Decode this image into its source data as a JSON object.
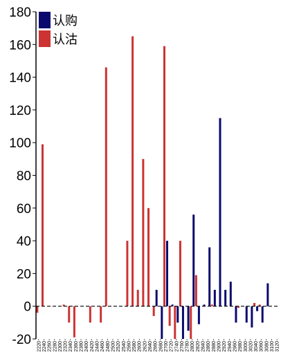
{
  "chart_data": {
    "type": "bar",
    "title": "",
    "xlabel": "",
    "ylabel": "",
    "ylim": [
      -20,
      180
    ],
    "y_ticks": [
      -20,
      0,
      20,
      40,
      60,
      80,
      100,
      120,
      140,
      160,
      180
    ],
    "grid": false,
    "legend_position": "top-left",
    "categories": [
      "2220",
      "2240",
      "2260",
      "2280",
      "2300",
      "2320",
      "2340",
      "2360",
      "2380",
      "2400",
      "2420",
      "2440",
      "2460",
      "2480",
      "2500",
      "2520",
      "2540",
      "2560",
      "2580",
      "2600",
      "2620",
      "2640",
      "2660",
      "2680",
      "2700",
      "2720",
      "2740",
      "2760",
      "2780",
      "2800",
      "2820",
      "2840",
      "2860",
      "2880",
      "2900",
      "2920",
      "2940",
      "2960",
      "2980",
      "3000",
      "3020",
      "3040",
      "3060",
      "3080",
      "3100",
      "3120"
    ],
    "series": [
      {
        "name": "认购",
        "color": "#0a0a6e",
        "values": [
          0,
          0,
          0,
          0,
          0,
          0,
          0,
          0,
          0,
          0,
          0,
          0,
          0,
          0,
          0,
          0,
          0,
          0,
          0,
          0,
          0,
          0,
          10,
          -20,
          40,
          1,
          -10,
          -20,
          -15,
          56,
          -11,
          1,
          36,
          10,
          115,
          10,
          15,
          -10,
          0,
          -10,
          -13,
          -3,
          -10,
          14,
          0,
          0
        ]
      },
      {
        "name": "认沽",
        "color": "#cc3333",
        "values": [
          -4,
          99,
          0,
          0,
          0,
          1,
          -10,
          -19,
          0,
          0,
          -10,
          0,
          -10,
          146,
          0,
          0,
          0,
          40,
          165,
          10,
          90,
          60,
          -6,
          0,
          159,
          -12,
          -20,
          40,
          0,
          -20,
          19,
          0,
          0,
          1,
          0,
          0,
          0,
          0,
          -1,
          0,
          0,
          2,
          1,
          0,
          0,
          0
        ]
      }
    ]
  }
}
